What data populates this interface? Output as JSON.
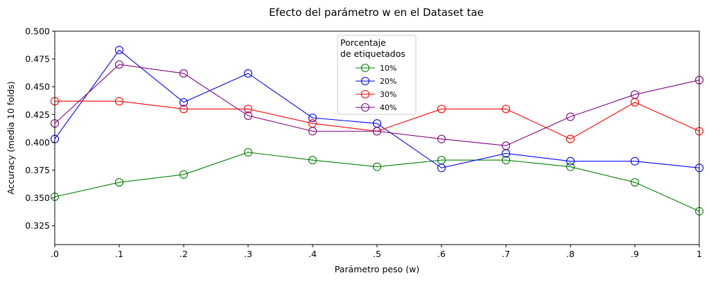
{
  "chart_data": {
    "type": "line",
    "title": "Efecto del parámetro w en el Dataset tae",
    "xlabel": "Parámetro peso (w)",
    "ylabel": "Accuracy (media 10 folds)",
    "x": [
      0,
      0.1,
      0.2,
      0.3,
      0.4,
      0.5,
      0.6,
      0.7,
      0.8,
      0.9,
      1
    ],
    "x_tick_labels": [
      ".0",
      ".1",
      ".2",
      ".3",
      ".4",
      ".5",
      ".6",
      ".7",
      ".8",
      ".9",
      "1"
    ],
    "xlim": [
      0,
      1
    ],
    "ylim": [
      0.308,
      0.5
    ],
    "y_ticks": [
      0.325,
      0.35,
      0.375,
      0.4,
      0.425,
      0.45,
      0.475,
      0.5
    ],
    "y_tick_labels": [
      "0.325",
      "0.350",
      "0.375",
      "0.400",
      "0.425",
      "0.450",
      "0.475",
      "0.500"
    ],
    "grid": false,
    "legend": {
      "title_line1": "Porcentaje",
      "title_line2": "de etiquetados",
      "placement": "top-center"
    },
    "series": [
      {
        "name": "10%",
        "color": "#008000",
        "values": [
          0.351,
          0.364,
          0.371,
          0.391,
          0.384,
          0.378,
          0.384,
          0.384,
          0.378,
          0.364,
          0.338
        ]
      },
      {
        "name": "20%",
        "color": "#0000ff",
        "values": [
          0.403,
          0.483,
          0.436,
          0.462,
          0.422,
          0.417,
          0.377,
          0.39,
          0.383,
          0.383,
          0.377
        ]
      },
      {
        "name": "30%",
        "color": "#ff0000",
        "values": [
          0.437,
          0.437,
          0.43,
          0.43,
          0.417,
          0.41,
          0.43,
          0.43,
          0.403,
          0.436,
          0.41
        ]
      },
      {
        "name": "40%",
        "color": "#800080",
        "values": [
          0.417,
          0.47,
          0.462,
          0.424,
          0.41,
          0.41,
          0.403,
          0.397,
          0.423,
          0.443,
          0.456
        ]
      }
    ]
  }
}
